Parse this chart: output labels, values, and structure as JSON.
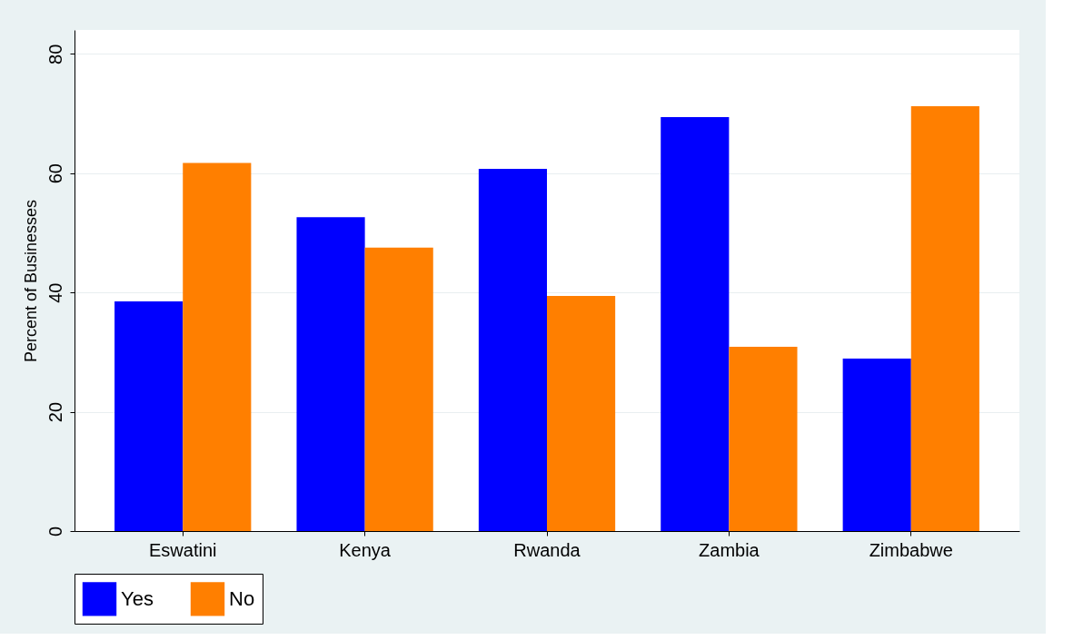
{
  "chart_data": {
    "type": "bar",
    "ylabel": "Percent of Businesses",
    "categories": [
      "Eswatini",
      "Kenya",
      "Rwanda",
      "Zambia",
      "Zimbabwe"
    ],
    "series": [
      {
        "name": "Yes",
        "color": "#0000ff",
        "values": [
          38.5,
          52.6,
          60.7,
          69.4,
          28.9
        ]
      },
      {
        "name": "No",
        "color": "#ff7f00",
        "values": [
          61.7,
          47.5,
          39.4,
          30.9,
          71.2
        ]
      }
    ],
    "ylim": [
      0,
      84
    ],
    "yticks": [
      0,
      20,
      40,
      60,
      80
    ],
    "grid": "y",
    "legend": "bottom"
  }
}
